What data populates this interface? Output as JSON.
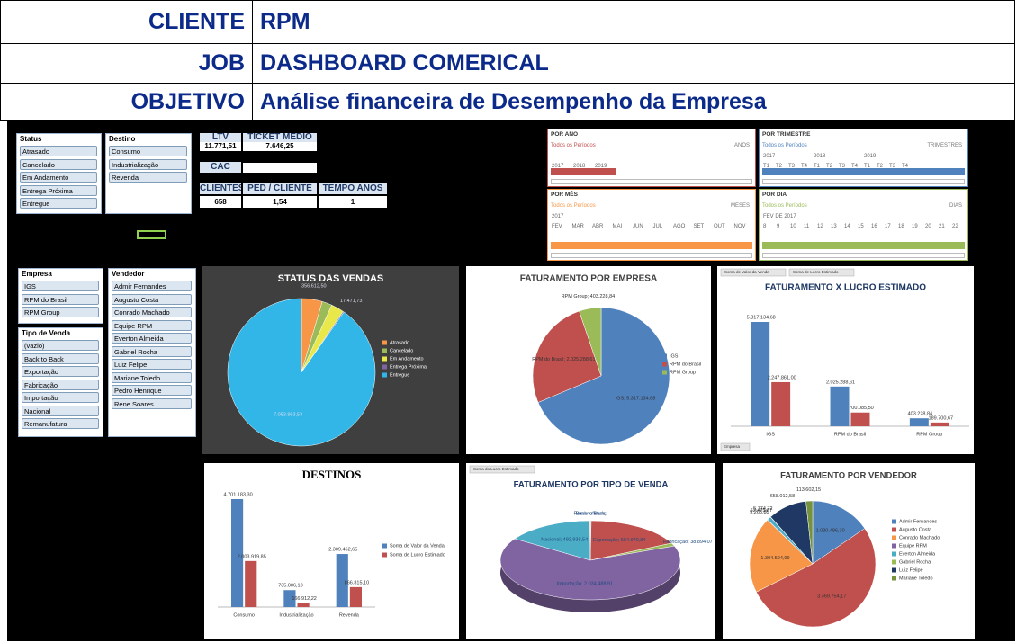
{
  "header": {
    "rows": [
      {
        "label": "CLIENTE",
        "value": "RPM"
      },
      {
        "label": "JOB",
        "value": "DASHBOARD COMERICAL"
      },
      {
        "label": "OBJETIVO",
        "value": "Análise financeira de Desempenho da Empresa"
      }
    ]
  },
  "slicers": [
    {
      "title": "Status",
      "items": [
        "Atrasado",
        "Cancelado",
        "Em Andamento",
        "Entrega Próxima",
        "Entregue"
      ]
    },
    {
      "title": "Destino",
      "items": [
        "Consumo",
        "Industrialização",
        "Revenda"
      ]
    },
    {
      "title": "Empresa",
      "items": [
        "IGS",
        "RPM do Brasil",
        "RPM Group"
      ]
    },
    {
      "title": "Tipo de Venda",
      "items": [
        "(vazio)",
        "Back to Back",
        "Exportação",
        "Fabricação",
        "Importação",
        "Nacional",
        "Remanufatura"
      ]
    },
    {
      "title": "Vendedor",
      "items": [
        "Admir Fernandes",
        "Augusto Costa",
        "Conrado Machado",
        "Equipe RPM",
        "Everton Almeida",
        "Gabriel Rocha",
        "Luiz Felipe",
        "Mariane Toledo",
        "Pedro Henrique",
        "Rene Soares"
      ]
    }
  ],
  "kpi": {
    "ltv": {
      "label": "LTV",
      "value": "11.771,51"
    },
    "ticket": {
      "label": "TICKET MÉDIO",
      "value": "7.646,25"
    },
    "cac": {
      "label": "CAC"
    },
    "clientes": {
      "label": "CLIENTES",
      "value": "658"
    },
    "ped": {
      "label": "PED / CLIENTE",
      "value": "1,54"
    },
    "tempo": {
      "label": "TEMPO ANOS",
      "value": "1"
    }
  },
  "timelines": [
    {
      "title": "POR ANO",
      "all": "Todos os Períodos",
      "level": "ANOS",
      "groups": [],
      "items": [
        "2017",
        "2018",
        "2019"
      ]
    },
    {
      "title": "POR TRIMESTRE",
      "all": "Todos os Períodos",
      "level": "TRIMESTRES",
      "groups": [
        "2017",
        "2018",
        "2019"
      ],
      "items": [
        "T1",
        "T2",
        "T3",
        "T4",
        "T1",
        "T2",
        "T3",
        "T4",
        "T1",
        "T2",
        "T3",
        "T4"
      ]
    },
    {
      "title": "POR MÊS",
      "all": "Todos os Períodos",
      "level": "MESES",
      "groups": [
        "2017"
      ],
      "items": [
        "FEV",
        "MAR",
        "ABR",
        "MAI",
        "JUN",
        "JUL",
        "AGO",
        "SET",
        "OUT",
        "NOV"
      ]
    },
    {
      "title": "POR DIA",
      "all": "Todos os Períodos",
      "level": "DIAS",
      "groups": [
        "FEV DE 2017"
      ],
      "items": [
        "8",
        "9",
        "10",
        "11",
        "12",
        "13",
        "14",
        "15",
        "16",
        "17",
        "18",
        "19",
        "20",
        "21",
        "22"
      ]
    }
  ],
  "chart_data": [
    {
      "type": "pie",
      "title": "STATUS DAS VENDAS",
      "categories": [
        "Atrasado",
        "Cancelado",
        "Em Andamento",
        "Entrega Próxima",
        "Entregue"
      ],
      "values": [
        356612.5,
        170000,
        220000,
        17471.73,
        7053993.53
      ],
      "value_labels": [
        "356.612,50",
        null,
        null,
        "17.471,73",
        "7.053.993,53"
      ],
      "colors": [
        "#f79646",
        "#9bbb59",
        "#e8e84a",
        "#8064a2",
        "#31b6e7"
      ]
    },
    {
      "type": "pie",
      "title": "FATURAMENTO POR EMPRESA",
      "categories": [
        "IGS",
        "RPM do Brasil",
        "RPM Group"
      ],
      "values": [
        5317134.68,
        2025288.61,
        403228.84
      ],
      "value_labels": [
        "IGS; 5.317.134,68",
        "RPM do Brasil; 2.025.288,61",
        "RPM Group; 403.228,84"
      ],
      "colors": [
        "#4f81bd",
        "#c0504d",
        "#9bbb59"
      ]
    },
    {
      "type": "bar",
      "title": "FATURAMENTO X LUCRO ESTIMADO",
      "buttons": [
        "Soma de Valor da Venda",
        "Soma de Lucro Estimado"
      ],
      "filter": "Empresa",
      "categories": [
        "IGS",
        "RPM do Brasil",
        "RPM Group"
      ],
      "series": [
        {
          "name": "Soma de Valor da Venda",
          "color": "#4f81bd",
          "values": [
            5317134.68,
            2025288.61,
            403228.84
          ],
          "value_labels": [
            "5.317.134,68",
            "2.025.288,61",
            "403.228,84"
          ]
        },
        {
          "name": "Soma de Lucro Estimado",
          "color": "#c0504d",
          "values": [
            2247861.0,
            700085.5,
            189700.67
          ],
          "value_labels": [
            "2.247.861,00",
            "700.085,50",
            "189.700,67"
          ]
        }
      ]
    },
    {
      "type": "bar",
      "title": "DESTINOS",
      "categories": [
        "Consumo",
        "Industrialização",
        "Revenda"
      ],
      "series": [
        {
          "name": "Soma de Valor da Venda",
          "color": "#4f81bd",
          "values": [
            4701183.3,
            735006.18,
            2309462.65
          ],
          "value_labels": [
            "4.701.183,30",
            "735.006,18",
            "2.309.462,65"
          ]
        },
        {
          "name": "Soma de Lucro Estimado",
          "color": "#c0504d",
          "values": [
            2003919.85,
            166912.22,
            866815.1
          ],
          "value_labels": [
            "2.003.919,85",
            "166.912,22",
            "866.815,10"
          ]
        }
      ]
    },
    {
      "type": "pie",
      "title": "FATURAMENTO POR TIPO DE VENDA",
      "buttons": [
        "Soma do Lucro Estimado"
      ],
      "categories": [
        "Back to Back",
        "Exportação",
        "Fabricação",
        "Importação",
        "Nacional",
        "Remanufatura"
      ],
      "values": [
        4910.81,
        554979.84,
        38894.07,
        2034488.91,
        492938.54,
        3000
      ],
      "value_labels": [
        "Back to Back;",
        "Exportação; 554.979,84",
        "Fabricação; 38.894,07",
        "Importação; 2.034.488,91",
        "Nacional; 492.938,54",
        "Remanufatura;"
      ],
      "colors": [
        "#4f81bd",
        "#c0504d",
        "#9bbb59",
        "#8064a2",
        "#4bacc6",
        "#f79646"
      ]
    },
    {
      "type": "pie",
      "title": "FATURAMENTO POR VENDEDOR",
      "categories": [
        "Admir Fernandes",
        "Augusto Costa",
        "Conrado Machado",
        "Equipe RPM",
        "Everton Almeida",
        "Gabriel Rocha",
        "Luiz Felipe",
        "Mariane Toledo"
      ],
      "values": [
        1030496.3,
        3469754.17,
        1304594.99,
        9268.85,
        62475.67,
        5774.72,
        658012.58,
        113602.15
      ],
      "value_labels": [
        "1.030.496,30",
        "3.469.754,17",
        "1.304.594,99",
        "9.268,85",
        "62.475,67",
        "5.774,72",
        "658.012,58",
        "113.602,15"
      ],
      "colors": [
        "#4f81bd",
        "#c0504d",
        "#f79646",
        "#8064a2",
        "#4bacc6",
        "#9bbb59",
        "#1f3864",
        "#76923c"
      ]
    }
  ]
}
